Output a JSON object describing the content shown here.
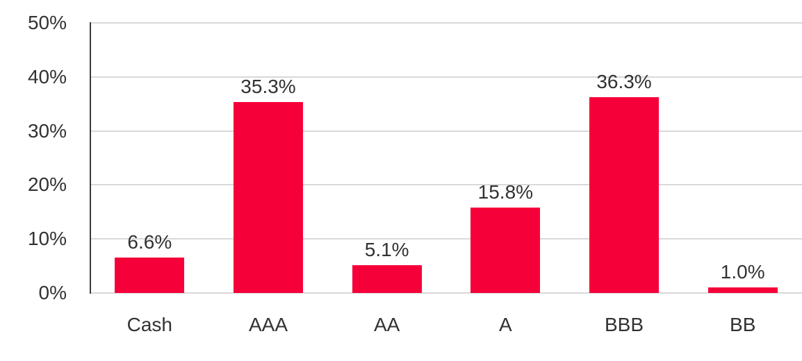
{
  "chart_data": {
    "type": "bar",
    "categories": [
      "Cash",
      "AAA",
      "AA",
      "A",
      "BBB",
      "BB"
    ],
    "values": [
      6.6,
      35.3,
      5.1,
      15.8,
      36.3,
      1.0
    ],
    "value_labels": [
      "6.6%",
      "35.3%",
      "5.1%",
      "15.8%",
      "36.3%",
      "1.0%"
    ],
    "y_ticks": [
      "50%",
      "40%",
      "30%",
      "20%",
      "10%",
      "0%"
    ],
    "y_tick_values": [
      50,
      40,
      30,
      20,
      10,
      0
    ],
    "ylim": [
      0,
      50
    ],
    "title": "",
    "xlabel": "",
    "ylabel": "",
    "grid": "horizontal-only",
    "legend": "none",
    "colors": {
      "bar": "#f50039",
      "axis_line": "#3a3a3a",
      "gridline": "#d9d9d9",
      "text": "#323232",
      "background": "#ffffff"
    }
  }
}
